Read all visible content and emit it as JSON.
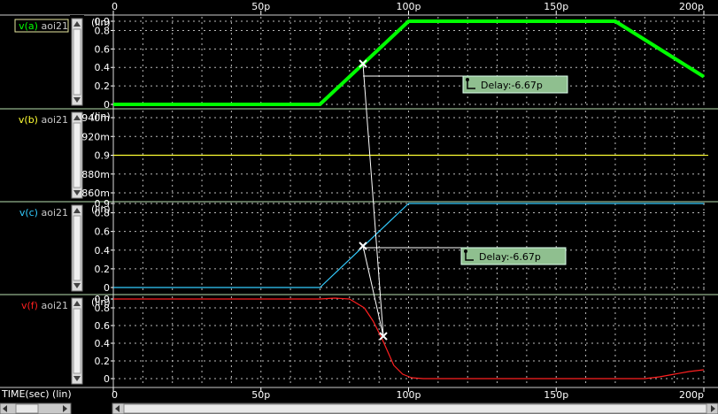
{
  "time_axis": {
    "ticks": [
      "0",
      "50p",
      "100p",
      "150p",
      "200p"
    ],
    "footer_label": "TIME(sec) (lin)"
  },
  "panels": [
    {
      "signal": "v(a)",
      "instance": "aoi21",
      "scale_label": "(lin)",
      "color": "#00ff00",
      "y_ticks": [
        "0.9",
        "0.8",
        "0.6",
        "0.4",
        "0.2",
        "0"
      ],
      "selected": true
    },
    {
      "signal": "v(b)",
      "instance": "aoi21",
      "scale_label": "(lin)",
      "color": "#ffff33",
      "y_ticks": [
        "940m",
        "920m",
        "0.9",
        "880m",
        "860m"
      ]
    },
    {
      "signal": "v(c)",
      "instance": "aoi21",
      "scale_label": "(lin)",
      "color": "#33ccff",
      "y_ticks": [
        "0.9",
        "0.8",
        "0.6",
        "0.4",
        "0.2",
        "0"
      ]
    },
    {
      "signal": "v(f)",
      "instance": "aoi21",
      "scale_label": "(lin)",
      "color": "#ff2020",
      "y_ticks": [
        "0.9",
        "0.8",
        "0.6",
        "0.4",
        "0.2",
        "0"
      ]
    }
  ],
  "measurements": [
    {
      "label": "Delay:-6.67p"
    },
    {
      "label": "Delay:-6.67p"
    }
  ],
  "chart_data": [
    {
      "type": "line",
      "series": [
        {
          "name": "v(a) aoi21",
          "x": [
            0,
            70,
            100,
            170,
            200
          ],
          "y": [
            0,
            0,
            0.9,
            0.9,
            0.3
          ]
        }
      ],
      "ylim": [
        0,
        0.9
      ],
      "xlim": [
        0,
        200
      ]
    },
    {
      "type": "line",
      "series": [
        {
          "name": "v(b) aoi21",
          "x": [
            0,
            200
          ],
          "y": [
            0.9,
            0.9
          ]
        }
      ],
      "ylim": [
        0.86,
        0.94
      ],
      "xlim": [
        0,
        200
      ]
    },
    {
      "type": "line",
      "series": [
        {
          "name": "v(c) aoi21",
          "x": [
            0,
            70,
            100,
            200
          ],
          "y": [
            0,
            0,
            0.9,
            0.9
          ]
        }
      ],
      "ylim": [
        0,
        0.9
      ],
      "xlim": [
        0,
        200
      ]
    },
    {
      "type": "line",
      "series": [
        {
          "name": "v(f) aoi21",
          "x": [
            0,
            70,
            75,
            80,
            85,
            88,
            91,
            93,
            95,
            98,
            101,
            105,
            110,
            180,
            185,
            190,
            195,
            200
          ],
          "y": [
            0.9,
            0.9,
            0.91,
            0.9,
            0.8,
            0.65,
            0.45,
            0.3,
            0.15,
            0.05,
            0.01,
            0.0,
            0.0,
            0.0,
            0.02,
            0.05,
            0.08,
            0.1
          ]
        }
      ],
      "ylim": [
        0,
        0.9
      ],
      "xlim": [
        0,
        200
      ]
    }
  ]
}
